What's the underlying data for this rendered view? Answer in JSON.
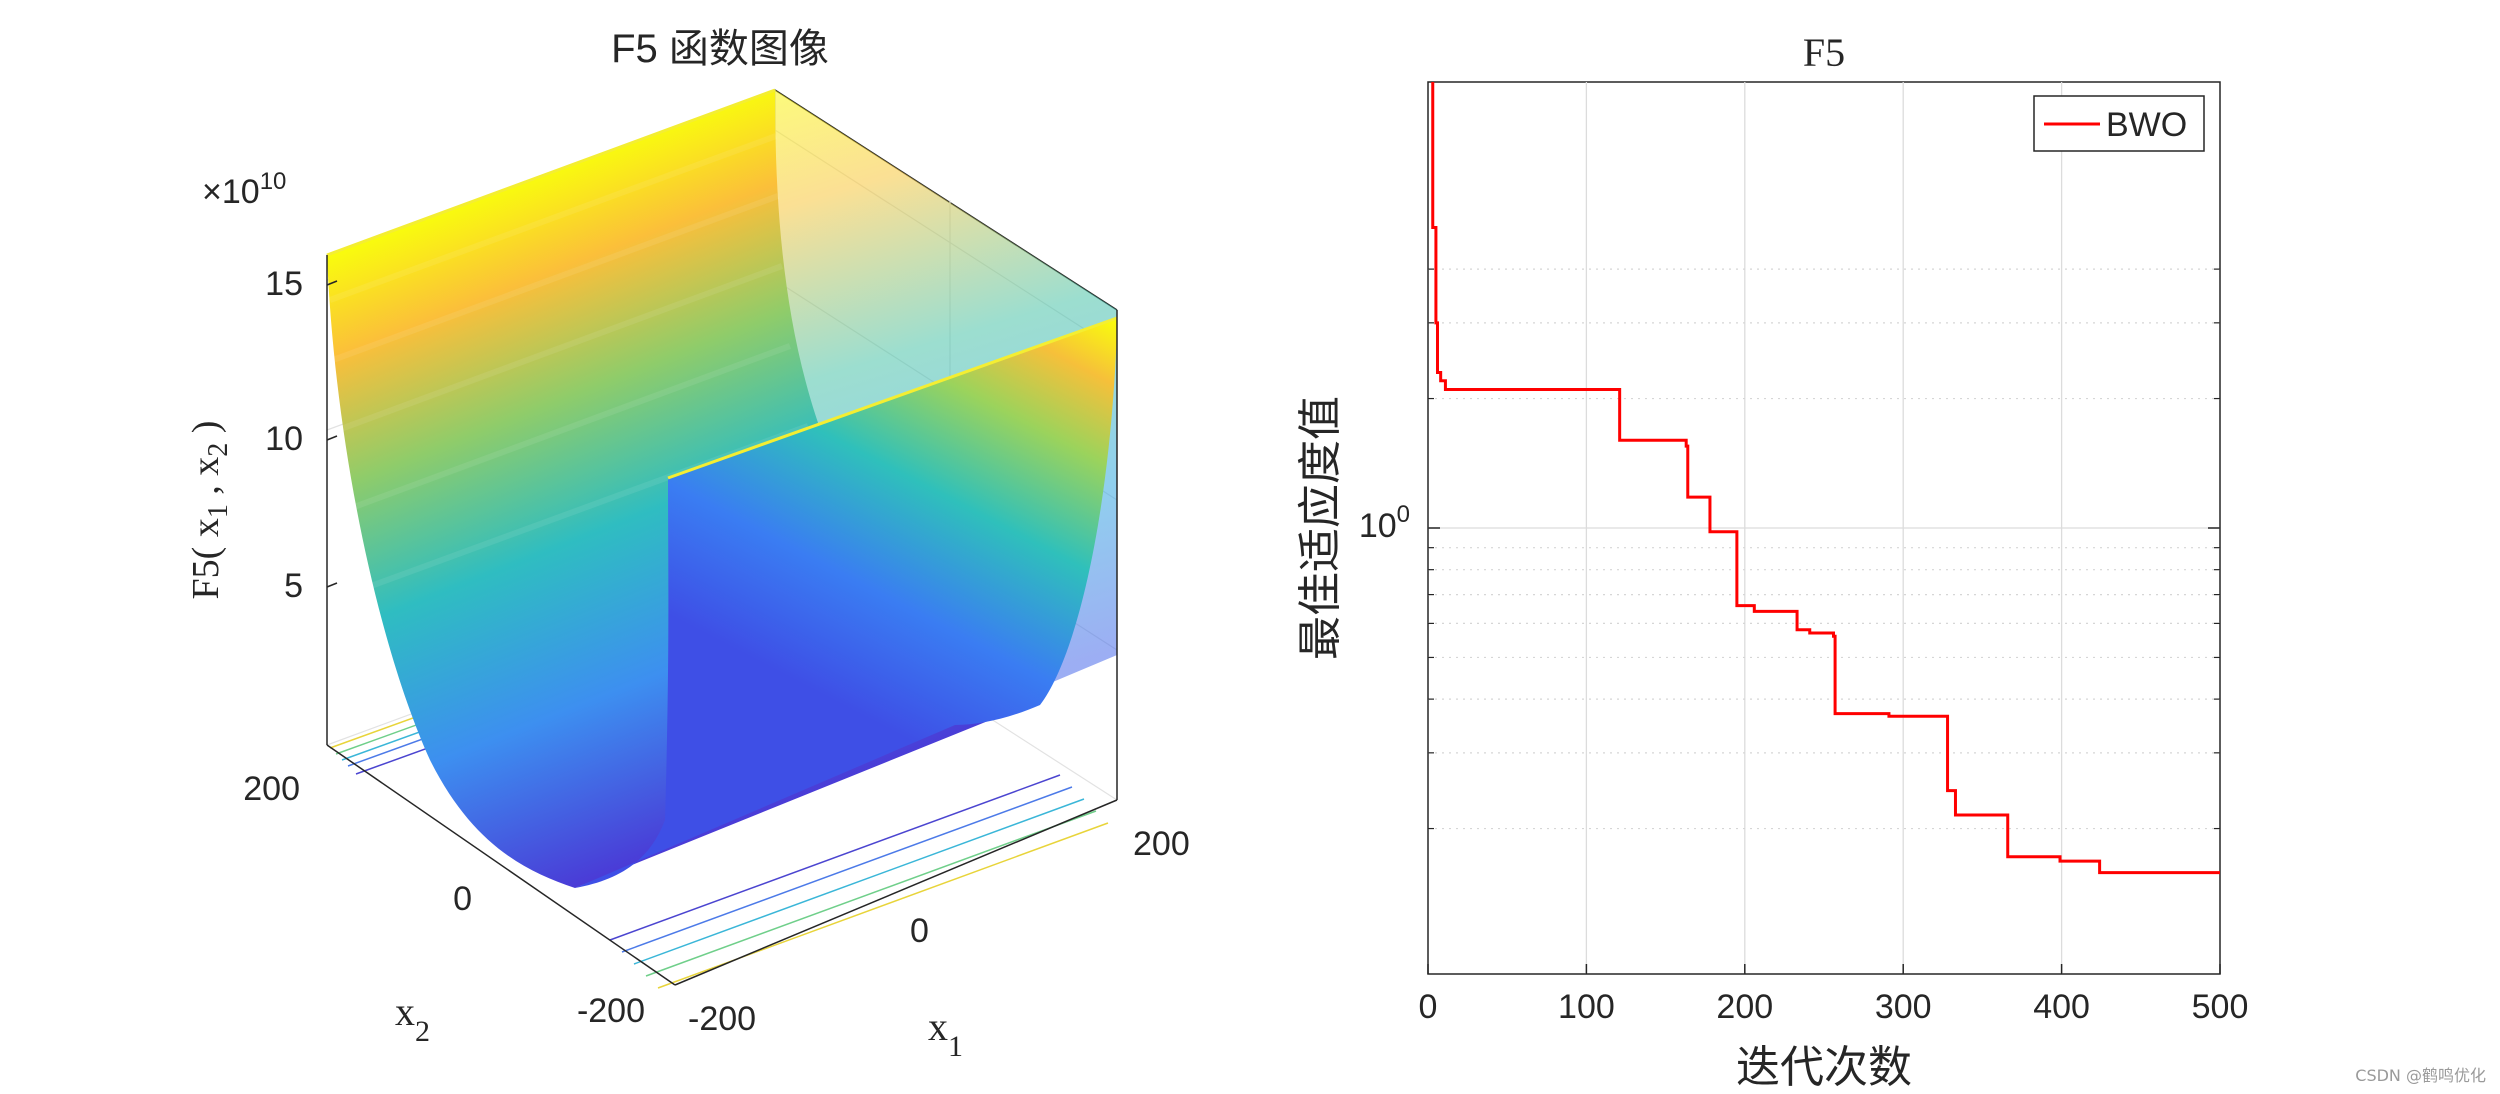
{
  "chart_data": [
    {
      "type": "surface",
      "title": "F5 函数图像",
      "xlabel": "x",
      "xlabel_sub": "1",
      "ylabel": "x",
      "ylabel_sub": "2",
      "zlabel": "F5( x₁ , x₂ )",
      "z_multiplier_prefix": "×10",
      "z_multiplier_exp": "10",
      "x_ticks": [
        "-200",
        "0",
        "200"
      ],
      "y_ticks": [
        "-200",
        "0",
        "200"
      ],
      "z_ticks": [
        "5",
        "10",
        "15"
      ],
      "xlim": [
        -200,
        200
      ],
      "ylim": [
        -200,
        200
      ],
      "zlim": [
        0,
        16
      ],
      "surface_profile": "z grows with distance from x2 = 0 (quartic-like valley), nearly constant along x1",
      "colormap": "parula",
      "contours_on_floor": true
    },
    {
      "type": "line",
      "title": "F5",
      "xlabel": "迭代次数",
      "ylabel": "最佳适应度值",
      "xlim": [
        0,
        500
      ],
      "x_ticks": [
        "0",
        "100",
        "200",
        "300",
        "400",
        "500"
      ],
      "y_scale": "log",
      "y_tick_label_base": "10",
      "y_tick_label_exp": "0",
      "grid": true,
      "legend_placement": "top-right",
      "series": [
        {
          "name": "BWO",
          "color": "#ff0000",
          "steps": [
            [
              0,
              50
            ],
            [
              1,
              12
            ],
            [
              3,
              5.0
            ],
            [
              5,
              3.0
            ],
            [
              6,
              2.3
            ],
            [
              8,
              2.2
            ],
            [
              11,
              2.1
            ],
            [
              120,
              2.1
            ],
            [
              121,
              1.6
            ],
            [
              160,
              1.6
            ],
            [
              163,
              1.55
            ],
            [
              164,
              1.18
            ],
            [
              177,
              1.18
            ],
            [
              178,
              0.98
            ],
            [
              192,
              0.98
            ],
            [
              195,
              0.66
            ],
            [
              205,
              0.66
            ],
            [
              206,
              0.64
            ],
            [
              232,
              0.64
            ],
            [
              233,
              0.58
            ],
            [
              240,
              0.58
            ],
            [
              241,
              0.57
            ],
            [
              250,
              0.57
            ],
            [
              256,
              0.56
            ],
            [
              257,
              0.37
            ],
            [
              290,
              0.37
            ],
            [
              291,
              0.365
            ],
            [
              327,
              0.365
            ],
            [
              328,
              0.245
            ],
            [
              330,
              0.245
            ],
            [
              333,
              0.215
            ],
            [
              365,
              0.215
            ],
            [
              366,
              0.172
            ],
            [
              398,
              0.172
            ],
            [
              399,
              0.168
            ],
            [
              423,
              0.168
            ],
            [
              424,
              0.158
            ],
            [
              500,
              0.157
            ]
          ]
        }
      ]
    }
  ],
  "watermark": "CSDN @鹤鸣优化"
}
